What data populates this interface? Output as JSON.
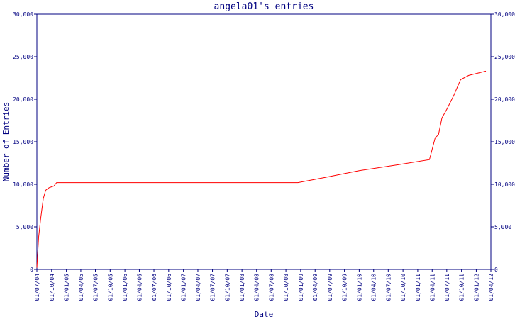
{
  "chart_data": {
    "type": "line",
    "title": "angela01's entries",
    "xlabel": "Date",
    "ylabel": "Number of Entries",
    "ylim": [
      0,
      30000
    ],
    "y_ticks": [
      0,
      5000,
      10000,
      15000,
      20000,
      25000,
      30000
    ],
    "y_tick_labels": [
      "0",
      "5,000",
      "10,000",
      "15,000",
      "20,000",
      "25,000",
      "30,000"
    ],
    "x_ticks": [
      "2004-07-01",
      "2004-10-01",
      "2005-01-01",
      "2005-04-01",
      "2005-07-01",
      "2005-10-01",
      "2006-01-01",
      "2006-04-01",
      "2006-07-01",
      "2006-10-01",
      "2007-01-01",
      "2007-04-01",
      "2007-07-01",
      "2007-10-01",
      "2008-01-01",
      "2008-04-01",
      "2008-07-01",
      "2008-10-01",
      "2009-01-01",
      "2009-04-01",
      "2009-07-01",
      "2009-10-01",
      "2010-01-01",
      "2010-04-01",
      "2010-07-01",
      "2010-10-01",
      "2011-01-01",
      "2011-04-01",
      "2011-07-01",
      "2011-10-01",
      "2012-01-01",
      "2012-04-01"
    ],
    "x_tick_labels": [
      "01/07/04",
      "01/10/04",
      "01/01/05",
      "01/04/05",
      "01/07/05",
      "01/10/05",
      "01/01/06",
      "01/04/06",
      "01/07/06",
      "01/10/06",
      "01/01/07",
      "01/04/07",
      "01/07/07",
      "01/10/07",
      "01/01/08",
      "01/04/08",
      "01/07/08",
      "01/10/08",
      "01/01/09",
      "01/04/09",
      "01/07/09",
      "01/10/09",
      "01/01/10",
      "01/04/10",
      "01/07/10",
      "01/10/10",
      "01/01/11",
      "01/04/11",
      "01/07/11",
      "01/10/11",
      "01/01/12",
      "01/04/12"
    ],
    "series": [
      {
        "color": "#ff0000",
        "points": [
          [
            "2004-07-01",
            200
          ],
          [
            "2004-07-12",
            3800
          ],
          [
            "2004-07-25",
            6000
          ],
          [
            "2004-08-10",
            8300
          ],
          [
            "2004-08-25",
            9300
          ],
          [
            "2004-09-15",
            9600
          ],
          [
            "2004-10-15",
            9800
          ],
          [
            "2004-11-01",
            10200
          ],
          [
            "2005-06-01",
            10200
          ],
          [
            "2006-06-01",
            10200
          ],
          [
            "2007-06-01",
            10200
          ],
          [
            "2008-06-01",
            10200
          ],
          [
            "2008-12-15",
            10200
          ],
          [
            "2009-06-01",
            10800
          ],
          [
            "2010-01-01",
            11600
          ],
          [
            "2010-09-01",
            12300
          ],
          [
            "2011-03-15",
            12900
          ],
          [
            "2011-04-20",
            15500
          ],
          [
            "2011-05-10",
            15800
          ],
          [
            "2011-06-01",
            17800
          ],
          [
            "2011-07-01",
            18800
          ],
          [
            "2011-08-15",
            20500
          ],
          [
            "2011-09-25",
            22300
          ],
          [
            "2011-11-15",
            22800
          ],
          [
            "2012-03-01",
            23300
          ]
        ]
      }
    ]
  }
}
